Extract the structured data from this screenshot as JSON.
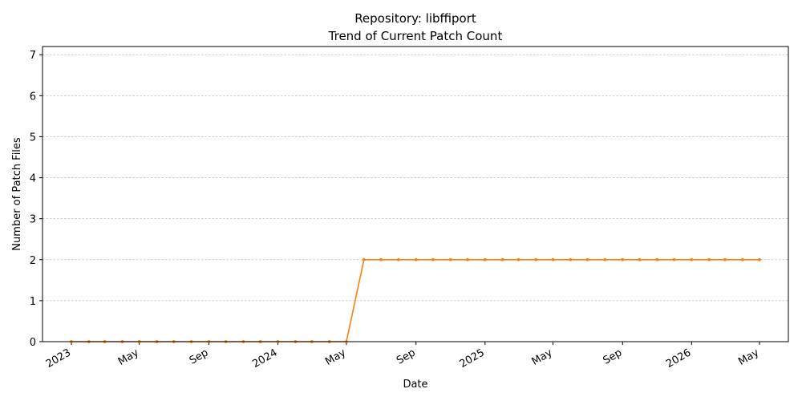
{
  "chart_data": {
    "type": "line",
    "title": "Repository: libffiport",
    "subtitle": "Trend of Current Patch Count",
    "xlabel": "Date",
    "ylabel": "Number of Patch Files",
    "ylim": [
      0,
      7.2
    ],
    "xlim": [
      "2022-11-11",
      "2026-06-21"
    ],
    "yticks": [
      0,
      1,
      2,
      3,
      4,
      5,
      6,
      7
    ],
    "xticks": [
      {
        "date": "2023-01-01",
        "label": "2023"
      },
      {
        "date": "2023-05-01",
        "label": "May"
      },
      {
        "date": "2023-09-01",
        "label": "Sep"
      },
      {
        "date": "2024-01-01",
        "label": "2024"
      },
      {
        "date": "2024-05-01",
        "label": "May"
      },
      {
        "date": "2024-09-01",
        "label": "Sep"
      },
      {
        "date": "2025-01-01",
        "label": "2025"
      },
      {
        "date": "2025-05-01",
        "label": "May"
      },
      {
        "date": "2025-09-01",
        "label": "Sep"
      },
      {
        "date": "2026-01-01",
        "label": "2026"
      },
      {
        "date": "2026-05-01",
        "label": "May"
      }
    ],
    "grid": "y",
    "color": "#ff7f0e",
    "x": [
      "2023-01-01",
      "2023-02-01",
      "2023-03-01",
      "2023-04-01",
      "2023-05-01",
      "2023-06-01",
      "2023-07-01",
      "2023-08-01",
      "2023-09-01",
      "2023-10-01",
      "2023-11-01",
      "2023-12-01",
      "2024-01-01",
      "2024-02-01",
      "2024-03-01",
      "2024-04-01",
      "2024-05-01",
      "2024-06-01",
      "2024-07-01",
      "2024-08-01",
      "2024-09-01",
      "2024-10-01",
      "2024-11-01",
      "2024-12-01",
      "2025-01-01",
      "2025-02-01",
      "2025-03-01",
      "2025-04-01",
      "2025-05-01",
      "2025-06-01",
      "2025-07-01",
      "2025-08-01",
      "2025-09-01",
      "2025-10-01",
      "2025-11-01",
      "2025-12-01",
      "2026-01-01",
      "2026-02-01",
      "2026-03-01",
      "2026-04-01",
      "2026-05-01"
    ],
    "values": [
      0,
      0,
      0,
      0,
      0,
      0,
      0,
      0,
      0,
      0,
      0,
      0,
      0,
      0,
      0,
      0,
      0,
      2,
      2,
      2,
      2,
      2,
      2,
      2,
      2,
      2,
      2,
      2,
      2,
      2,
      2,
      2,
      2,
      2,
      2,
      2,
      2,
      2,
      2,
      2,
      2
    ]
  }
}
